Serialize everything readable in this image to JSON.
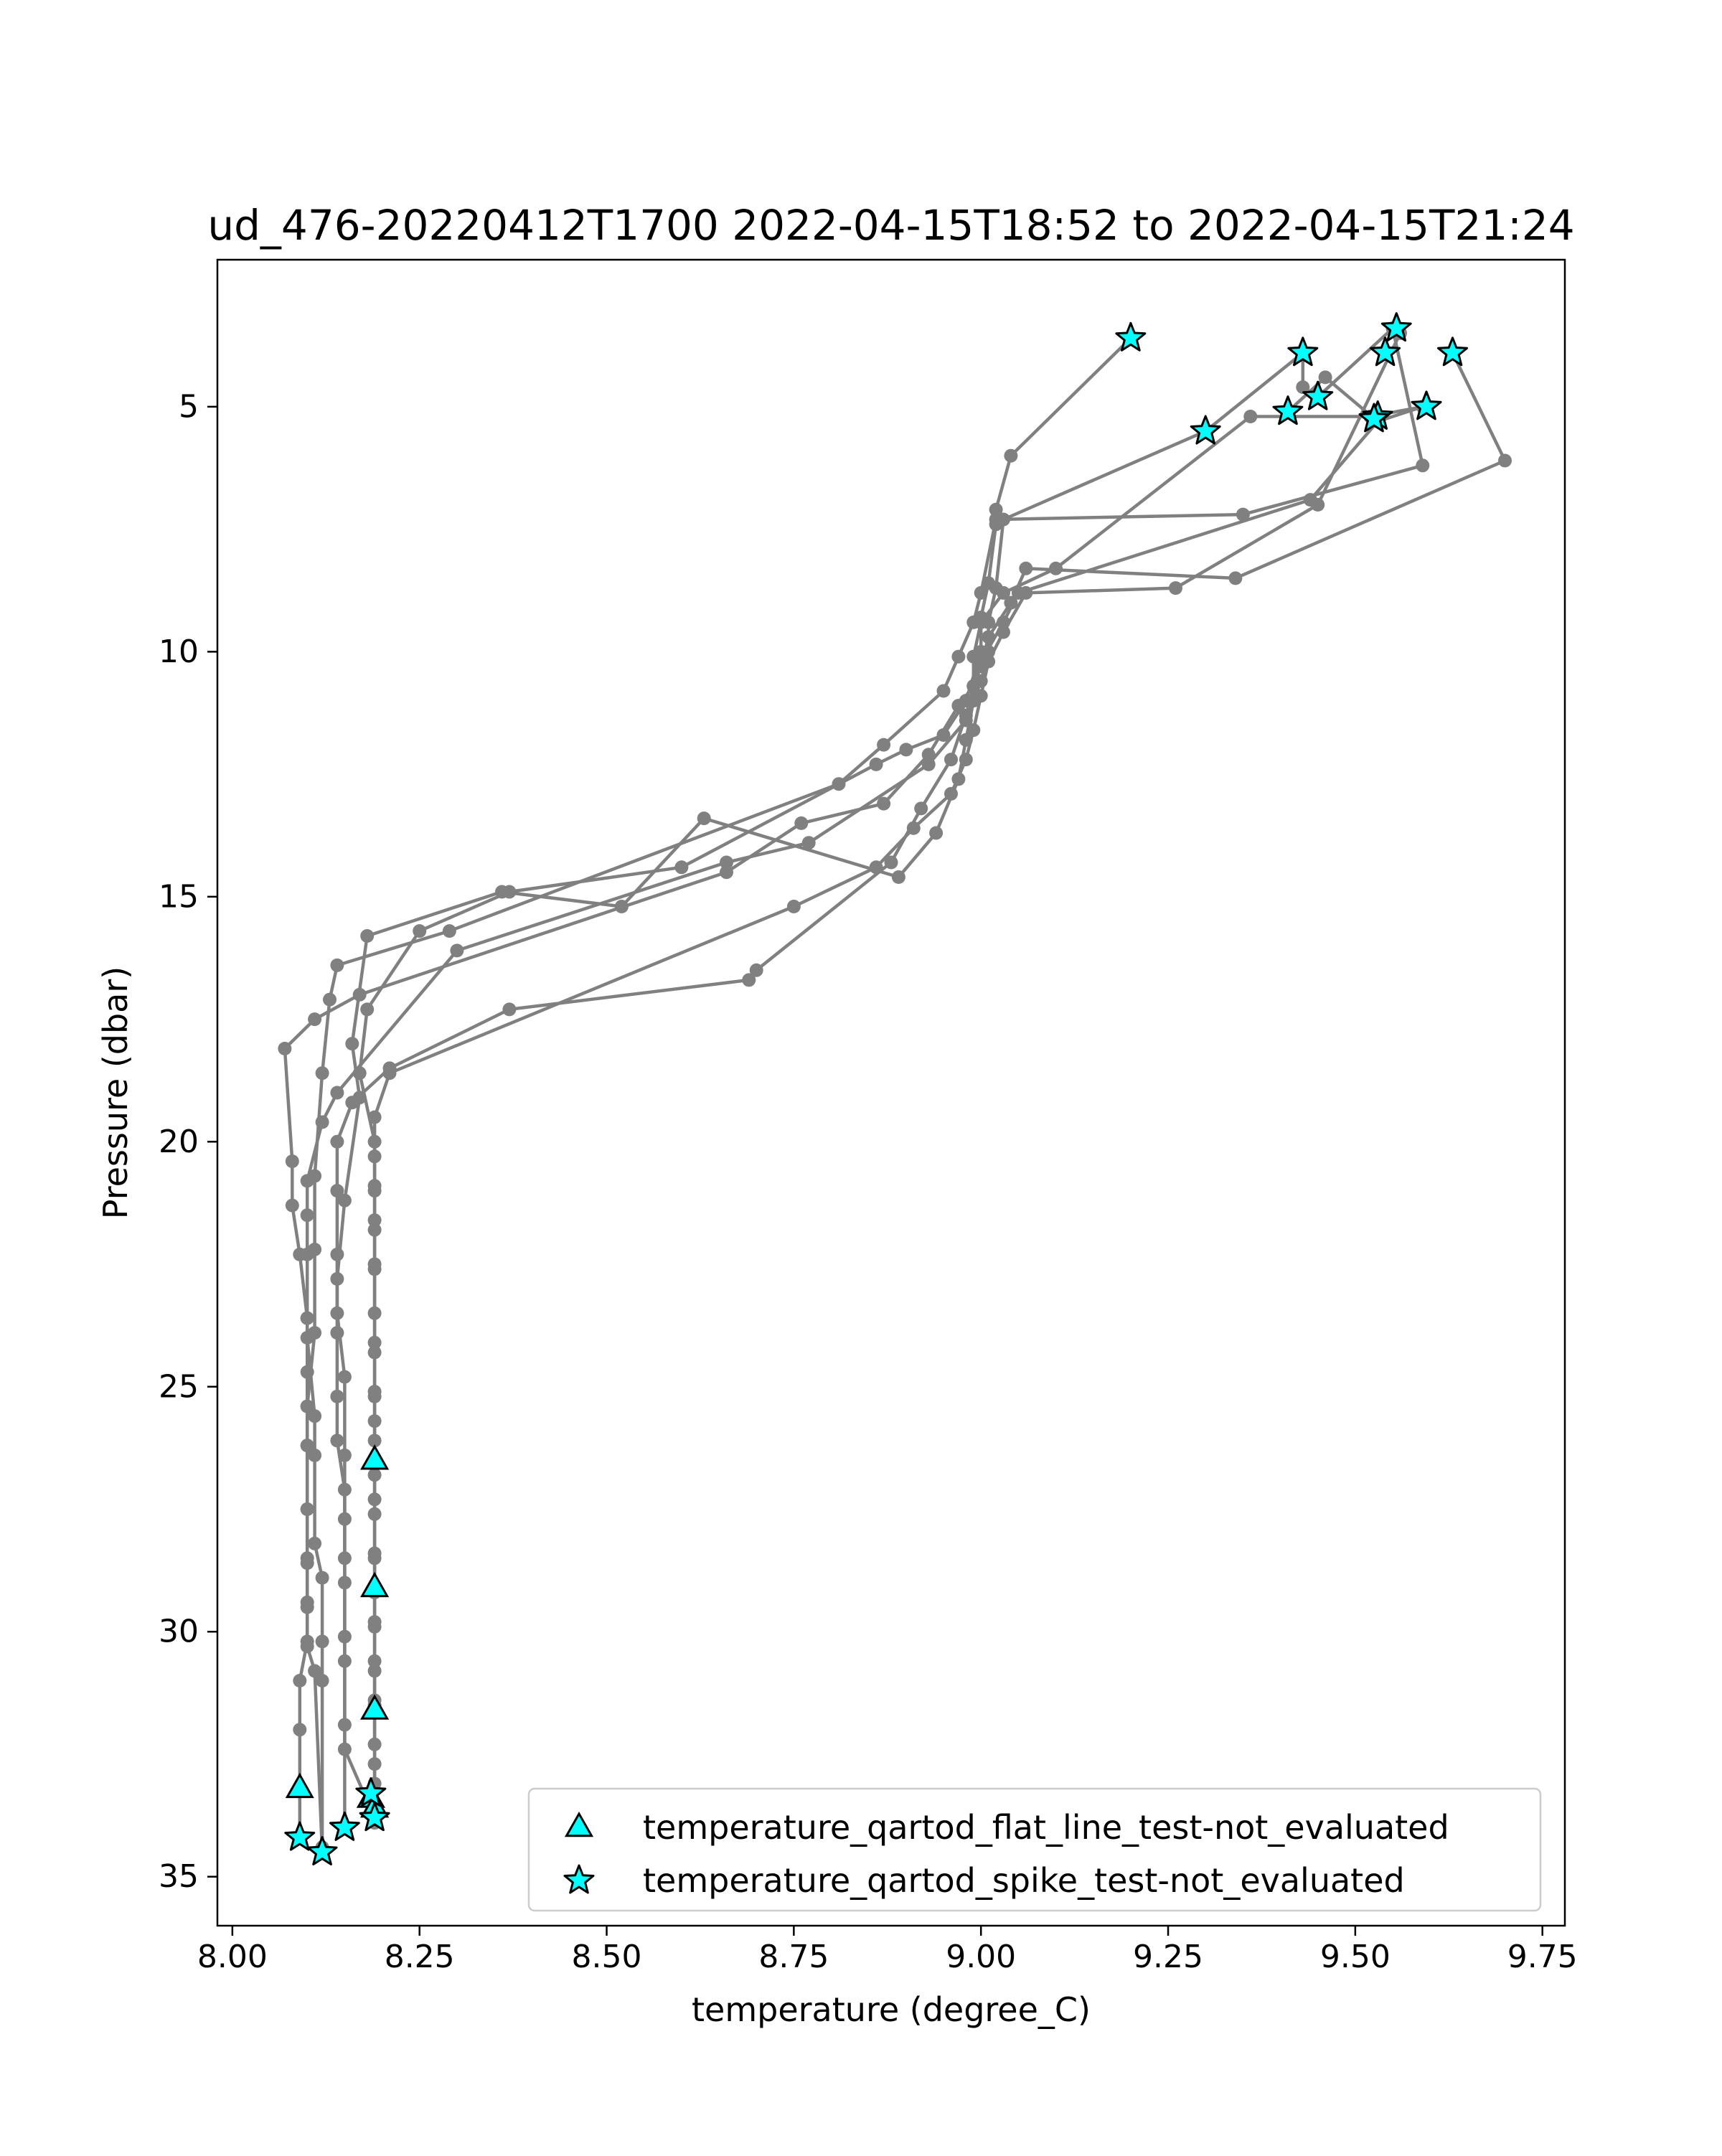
{
  "chart_data": {
    "type": "line",
    "title": "ud_476-20220412T1700 2022-04-15T18:52 to 2022-04-15T21:24",
    "xlabel": "temperature (degree_C)",
    "ylabel": "Pressure (dbar)",
    "xlim": [
      7.98,
      9.78
    ],
    "ylim": [
      36.0,
      2.0
    ],
    "y_inverted": true,
    "grid": false,
    "x_ticks": [
      8.0,
      8.25,
      8.5,
      8.75,
      9.0,
      9.25,
      9.5,
      9.75
    ],
    "x_tick_labels": [
      "8.00",
      "8.25",
      "8.50",
      "8.75",
      "9.00",
      "9.25",
      "9.50",
      "9.75"
    ],
    "y_ticks": [
      5,
      10,
      15,
      20,
      25,
      30,
      35
    ],
    "y_tick_labels": [
      "5",
      "10",
      "15",
      "20",
      "25",
      "30",
      "35"
    ],
    "line_color": "#808080",
    "marker_color": "#00ffff",
    "legend_position": "lower-right",
    "series": [
      {
        "x": [
          9.2,
          9.04,
          9.02,
          9.02,
          9.01,
          9.0,
          9.0,
          8.98,
          8.95,
          8.9,
          8.86,
          8.6,
          8.37,
          8.25,
          8.18,
          8.17,
          8.19,
          8.19,
          8.19,
          8.19,
          8.19,
          8.19,
          8.19,
          8.19,
          8.19,
          8.19,
          8.19,
          8.19,
          8.19,
          8.19,
          8.19
        ],
        "y": [
          3.6,
          6.0,
          7.1,
          7.4,
          8.6,
          9.3,
          10.0,
          11.0,
          11.7,
          12.0,
          12.3,
          14.4,
          14.9,
          15.7,
          17.3,
          18.6,
          20.0,
          20.9,
          21.6,
          22.5,
          24.1,
          25.1,
          25.7,
          26.5,
          27.3,
          28.4,
          29.8,
          30.6,
          31.5,
          32.7,
          33.6
        ]
      },
      {
        "x": [
          9.43,
          9.43,
          9.3,
          9.03,
          9.02,
          9.01,
          9.01,
          9.0,
          8.98,
          8.93,
          8.77,
          8.66,
          8.3,
          8.14,
          8.12,
          8.1,
          8.1,
          8.1,
          8.1,
          8.1,
          8.1,
          8.1,
          8.1,
          8.1,
          8.1,
          8.1,
          8.09,
          8.09,
          8.09
        ],
        "y": [
          4.6,
          3.9,
          5.5,
          7.3,
          8.7,
          9.4,
          10.0,
          10.6,
          11.4,
          12.3,
          13.9,
          14.3,
          16.1,
          19.0,
          19.6,
          20.8,
          21.5,
          22.3,
          23.6,
          24.7,
          25.4,
          26.2,
          27.5,
          28.6,
          29.5,
          30.2,
          31.0,
          32.0,
          34.2
        ]
      },
      {
        "x": [
          9.45,
          9.55,
          9.59,
          9.35,
          9.02,
          9.0,
          8.99,
          8.97,
          8.95,
          8.87,
          8.81,
          8.29,
          8.14,
          8.13,
          8.12,
          8.11,
          8.11,
          8.11,
          8.1,
          8.1,
          8.1,
          8.1,
          8.1,
          8.1,
          8.11,
          8.12
        ],
        "y": [
          4.8,
          3.4,
          6.2,
          7.2,
          7.3,
          8.8,
          9.4,
          10.1,
          10.8,
          11.9,
          12.7,
          15.7,
          16.4,
          17.1,
          18.6,
          20.7,
          22.2,
          23.9,
          25.4,
          26.2,
          27.5,
          28.5,
          29.4,
          30.3,
          30.8,
          34.5
        ]
      },
      {
        "x": [
          9.41,
          9.46,
          9.53,
          9.44,
          9.05,
          9.03,
          9.0,
          8.99,
          8.97,
          8.93,
          8.87,
          8.76,
          8.66,
          8.17,
          8.11,
          8.07,
          8.08,
          8.08,
          8.09,
          8.1,
          8.1,
          8.11,
          8.11,
          8.11,
          8.12,
          8.12,
          8.12,
          8.12
        ],
        "y": [
          5.1,
          4.4,
          5.3,
          6.9,
          8.8,
          9.4,
          10.2,
          10.7,
          11.1,
          12.1,
          13.1,
          13.5,
          14.5,
          17.0,
          17.5,
          18.1,
          20.4,
          21.3,
          22.3,
          23.6,
          24.0,
          25.6,
          26.4,
          28.2,
          28.9,
          30.2,
          31.0,
          34.4
        ]
      },
      {
        "x": [
          9.53,
          9.59,
          9.52,
          9.36,
          9.1,
          9.03,
          9.0,
          8.99,
          8.99,
          8.98,
          8.97,
          8.94,
          8.89,
          8.63,
          8.52,
          8.36,
          8.18,
          8.16,
          8.17,
          8.15,
          8.14,
          8.14,
          8.14,
          8.14,
          8.15,
          8.15,
          8.15,
          8.15,
          8.15
        ],
        "y": [
          5.3,
          5.0,
          5.2,
          5.2,
          8.3,
          8.8,
          9.4,
          10.1,
          11.0,
          11.8,
          12.6,
          13.7,
          14.6,
          13.4,
          15.2,
          14.9,
          15.8,
          18.0,
          19.1,
          21.2,
          22.8,
          23.9,
          25.2,
          26.1,
          27.1,
          28.5,
          30.1,
          31.9,
          34.0
        ]
      },
      {
        "x": [
          9.63,
          9.7,
          9.34,
          9.06,
          9.04,
          9.01,
          9.0,
          8.99,
          8.98,
          8.96,
          8.92,
          8.88,
          8.7,
          8.69,
          8.37,
          8.21,
          8.16,
          8.14,
          8.14,
          8.14,
          8.14,
          8.15,
          8.15,
          8.15,
          8.15,
          8.15,
          8.15,
          8.19
        ],
        "y": [
          3.9,
          6.1,
          8.5,
          8.3,
          9.0,
          9.7,
          10.3,
          10.7,
          11.3,
          12.2,
          13.2,
          14.3,
          16.5,
          16.7,
          17.3,
          18.5,
          19.2,
          20.0,
          21.0,
          22.3,
          23.5,
          24.8,
          26.4,
          27.7,
          29.0,
          30.6,
          32.4,
          33.8
        ]
      },
      {
        "x": [
          9.56,
          9.45,
          9.26,
          9.06,
          9.03,
          9.01,
          9.0,
          8.99,
          8.98,
          8.96,
          8.91,
          8.86,
          8.75,
          8.21,
          8.19,
          8.19,
          8.19,
          8.19,
          8.19,
          8.19,
          8.19,
          8.19,
          8.19,
          8.19,
          8.19,
          8.19,
          8.19,
          8.19,
          8.19,
          8.19,
          8.19,
          8.19,
          8.19
        ],
        "y": [
          3.5,
          7.0,
          8.7,
          8.8,
          9.6,
          10.2,
          10.9,
          11.6,
          12.2,
          12.9,
          13.6,
          14.4,
          15.2,
          18.6,
          19.5,
          20.3,
          21.0,
          21.8,
          22.6,
          23.5,
          24.3,
          25.2,
          26.1,
          26.8,
          27.6,
          28.5,
          29.2,
          29.9,
          30.8,
          31.4,
          32.3,
          33.1,
          33.9
        ]
      }
    ],
    "flat_line_markers": {
      "label": "temperature_qartod_flat_line_test-not_evaluated",
      "marker": "triangle",
      "x": [
        8.19,
        8.19,
        8.19,
        8.09,
        8.185,
        8.19
      ],
      "y": [
        26.5,
        29.1,
        31.6,
        33.2,
        33.4,
        33.6
      ]
    },
    "spike_markers": {
      "label": "temperature_qartod_spike_test-not_evaluated",
      "marker": "star",
      "x": [
        9.2,
        9.3,
        9.43,
        9.45,
        9.41,
        9.555,
        9.54,
        9.53,
        9.525,
        9.595,
        9.63,
        8.09,
        8.12,
        8.15,
        8.185,
        8.19
      ],
      "y": [
        3.6,
        5.5,
        3.9,
        4.8,
        5.1,
        3.4,
        3.9,
        5.2,
        5.25,
        5.0,
        3.9,
        34.2,
        34.5,
        34.0,
        33.3,
        33.8
      ]
    }
  }
}
